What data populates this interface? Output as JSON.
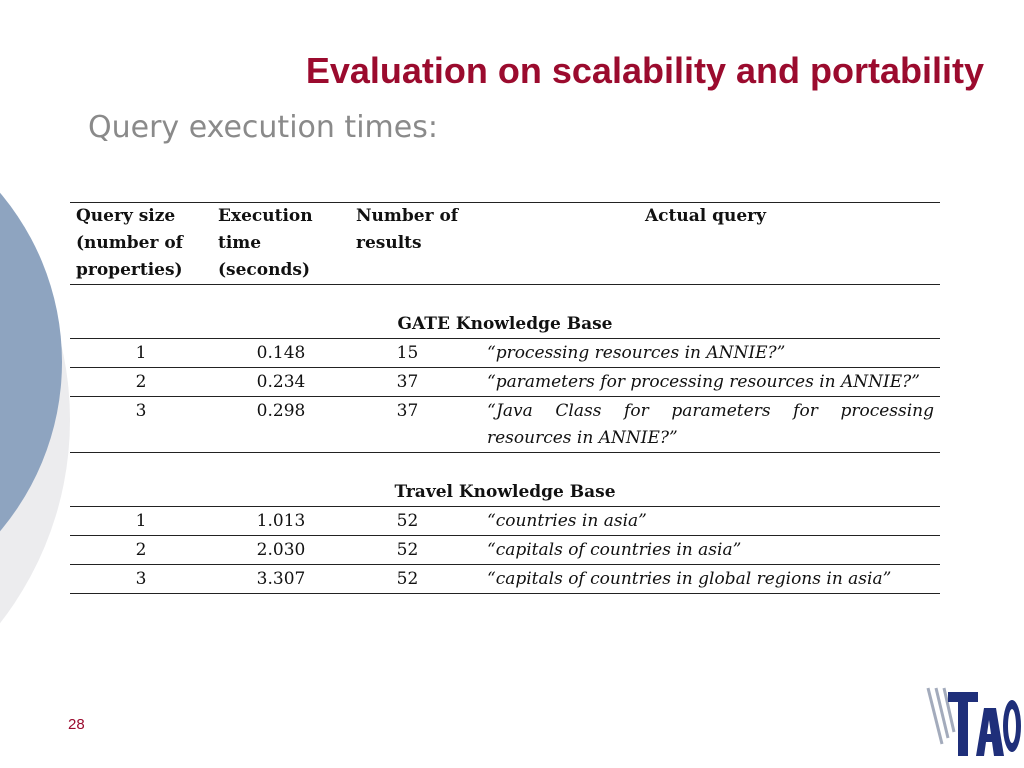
{
  "slide": {
    "title": "Evaluation on scalability and portability",
    "subtitle": "Query execution times:",
    "page_number": "28"
  },
  "table": {
    "headers": {
      "query_size": "Query size (number of properties)",
      "execution_time": "Execution time (seconds)",
      "num_results": "Number of results",
      "actual_query": "Actual query"
    },
    "sections": [
      {
        "title": "GATE Knowledge Base",
        "rows": [
          {
            "size": "1",
            "time": "0.148",
            "results": "15",
            "query": "“processing resources in ANNIE?”"
          },
          {
            "size": "2",
            "time": "0.234",
            "results": "37",
            "query": "“parameters for processing resources in ANNIE?”"
          },
          {
            "size": "3",
            "time": "0.298",
            "results": "37",
            "query": "“Java Class for parameters for processing resources in ANNIE?”"
          }
        ]
      },
      {
        "title": "Travel Knowledge Base",
        "rows": [
          {
            "size": "1",
            "time": "1.013",
            "results": "52",
            "query": "“countries in asia”"
          },
          {
            "size": "2",
            "time": "2.030",
            "results": "52",
            "query": "“capitals of countries in asia”"
          },
          {
            "size": "3",
            "time": "3.307",
            "results": "52",
            "query": "“capitals of countries in global regions in asia”"
          }
        ]
      }
    ]
  },
  "logo": {
    "text": "TAO",
    "icon": "tao-logo-icon",
    "colors": {
      "primary": "#1f2f7a",
      "shadow": "#9aa3b5"
    }
  },
  "theme": {
    "title_color": "#9b0b2e",
    "subtitle_color": "#8a8a8a",
    "decor_blue": "#8ea4c0",
    "decor_light": "#e8eaed"
  }
}
